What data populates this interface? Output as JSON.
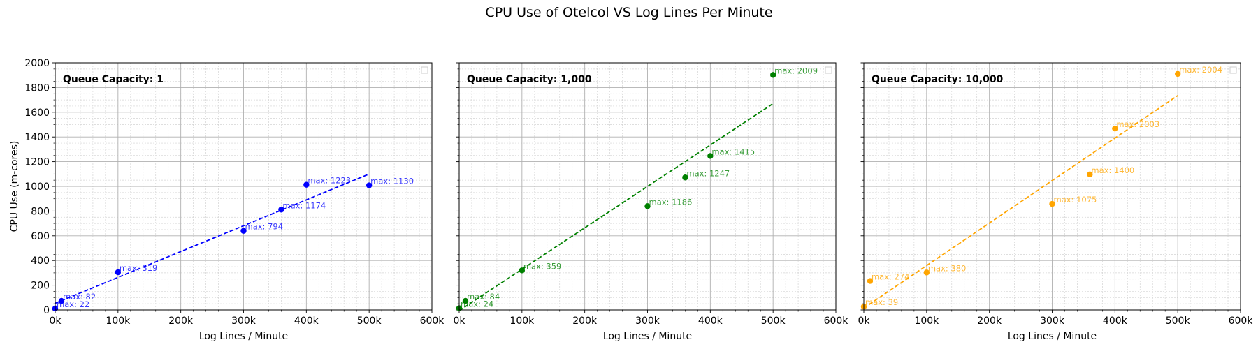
{
  "figure": {
    "title": "CPU Use of Otelcol VS Log Lines Per Minute"
  },
  "chart_data": [
    {
      "type": "scatter",
      "panel_title": "Queue Capacity: 1",
      "color": "#0000ff",
      "title": "",
      "xlabel": "Log Lines / Minute",
      "ylabel": "CPU Use (m-cores)",
      "xlim": [
        0,
        600000
      ],
      "ylim": [
        0,
        2000
      ],
      "xticks": [
        "0k",
        "100k",
        "200k",
        "300k",
        "400k",
        "500k",
        "600k"
      ],
      "yticks": [
        "0",
        "200",
        "400",
        "600",
        "800",
        "1000",
        "1200",
        "1400",
        "1600",
        "1800",
        "2000"
      ],
      "grid": true,
      "legend": "top-right (empty)",
      "points": [
        {
          "x": 0,
          "y": 12,
          "label": "max: 22"
        },
        {
          "x": 10000,
          "y": 73,
          "label": "max: 82"
        },
        {
          "x": 100000,
          "y": 305,
          "label": "max: 319"
        },
        {
          "x": 300000,
          "y": 640,
          "label": "max: 794"
        },
        {
          "x": 360000,
          "y": 812,
          "label": "max: 1174"
        },
        {
          "x": 400000,
          "y": 1013,
          "label": "max: 1223"
        },
        {
          "x": 500000,
          "y": 1008,
          "label": "max: 1130"
        }
      ],
      "fit": {
        "x": [
          0,
          500000
        ],
        "y": [
          54,
          1100
        ],
        "style": "dashed"
      }
    },
    {
      "type": "scatter",
      "panel_title": "Queue Capacity: 1,000",
      "color": "#008000",
      "title": "",
      "xlabel": "Log Lines / Minute",
      "ylabel": "",
      "xlim": [
        0,
        600000
      ],
      "ylim": [
        0,
        2000
      ],
      "xticks": [
        "0k",
        "100k",
        "200k",
        "300k",
        "400k",
        "500k",
        "600k"
      ],
      "grid": true,
      "legend": "top-right (empty)",
      "points": [
        {
          "x": 0,
          "y": 14,
          "label": "max: 24"
        },
        {
          "x": 10000,
          "y": 73,
          "label": "max: 84"
        },
        {
          "x": 100000,
          "y": 320,
          "label": "max: 359"
        },
        {
          "x": 300000,
          "y": 840,
          "label": "max: 1186"
        },
        {
          "x": 360000,
          "y": 1072,
          "label": "max: 1247"
        },
        {
          "x": 400000,
          "y": 1246,
          "label": "max: 1415"
        },
        {
          "x": 500000,
          "y": 1902,
          "label": "max: 2009"
        }
      ],
      "fit": {
        "x": [
          0,
          500000
        ],
        "y": [
          -6,
          1670
        ],
        "style": "dashed"
      }
    },
    {
      "type": "scatter",
      "panel_title": "Queue Capacity: 10,000",
      "color": "#ffa500",
      "title": "",
      "xlabel": "Log Lines / Minute",
      "ylabel": "",
      "xlim": [
        0,
        600000
      ],
      "ylim": [
        0,
        2000
      ],
      "xticks": [
        "0k",
        "100k",
        "200k",
        "300k",
        "400k",
        "500k",
        "600k"
      ],
      "grid": true,
      "legend": "top-right (empty)",
      "points": [
        {
          "x": 0,
          "y": 27,
          "label": "max: 39"
        },
        {
          "x": 10000,
          "y": 234,
          "label": "max: 274"
        },
        {
          "x": 100000,
          "y": 303,
          "label": "max: 380"
        },
        {
          "x": 300000,
          "y": 858,
          "label": "max: 1075"
        },
        {
          "x": 360000,
          "y": 1097,
          "label": "max: 1400"
        },
        {
          "x": 400000,
          "y": 1468,
          "label": "max: 2003"
        },
        {
          "x": 500000,
          "y": 1910,
          "label": "max: 2004"
        }
      ],
      "fit": {
        "x": [
          0,
          500000
        ],
        "y": [
          15,
          1735
        ],
        "style": "dashed"
      }
    }
  ]
}
